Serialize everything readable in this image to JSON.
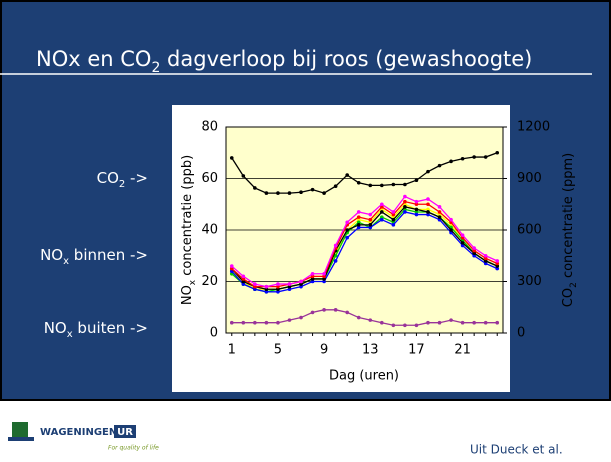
{
  "title": [
    "NOx en CO",
    "2",
    " dagverloop bij roos (gewashoogte)"
  ],
  "labels": [
    [
      "CO",
      "2",
      " ->"
    ],
    [
      "NO",
      "x",
      " binnen ->"
    ],
    [
      "NO",
      "x",
      " buiten ->"
    ]
  ],
  "footer": {
    "logo": "WAGENINGEN",
    "logo_ur": "UR",
    "tagline": "For quality of life",
    "credit": "Uit Dueck et al."
  },
  "chart_data": {
    "type": "line",
    "categories": [
      "1",
      null,
      null,
      null,
      "5",
      null,
      null,
      null,
      "9",
      null,
      null,
      null,
      "13",
      null,
      null,
      null,
      "17",
      null,
      null,
      null,
      "21",
      null,
      null,
      null
    ],
    "xlabel": "Dag (uren)",
    "ylabel": [
      "NO",
      "x",
      " concentratie (ppb)"
    ],
    "y2label": [
      "CO",
      "2",
      " concentratie (ppm)"
    ],
    "ylim": [
      0,
      80
    ],
    "yticks": [
      0,
      20,
      40,
      60,
      80
    ],
    "y2lim": [
      0,
      1200
    ],
    "y2ticks": [
      0,
      300,
      600,
      900,
      1200
    ],
    "grid": true,
    "series": [
      {
        "color": "#000000",
        "axis": "y2",
        "values": [
          1020,
          915,
          845,
          815,
          815,
          815,
          820,
          835,
          815,
          855,
          920,
          875,
          860,
          860,
          865,
          865,
          890,
          940,
          975,
          1000,
          1015,
          1025,
          1025,
          1050
        ]
      },
      {
        "color": "#ffff00",
        "values": [
          24,
          20,
          17,
          17,
          17,
          18,
          19,
          21,
          21,
          31,
          40,
          44,
          43,
          48,
          45,
          50,
          48,
          48,
          46,
          42,
          36,
          31,
          28,
          26
        ]
      },
      {
        "color": "#00cc00",
        "values": [
          23,
          19,
          17,
          16,
          17,
          18,
          19,
          21,
          21,
          30,
          39,
          43,
          41,
          45,
          43,
          48,
          47,
          47,
          45,
          41,
          36,
          31,
          28,
          26
        ]
      },
      {
        "color": "#0000ff",
        "values": [
          24,
          19,
          17,
          16,
          16,
          17,
          18,
          20,
          20,
          28,
          37,
          41,
          41,
          44,
          42,
          47,
          46,
          46,
          44,
          39,
          34,
          30,
          27,
          25
        ]
      },
      {
        "color": "#000000",
        "values": [
          25,
          20,
          18,
          17,
          17,
          18,
          19,
          21,
          21,
          32,
          40,
          42,
          42,
          47,
          44,
          49,
          48,
          47,
          45,
          40,
          35,
          31,
          28,
          26
        ]
      },
      {
        "color": "#ff0000",
        "values": [
          25,
          21,
          18,
          18,
          18,
          19,
          20,
          22,
          22,
          33,
          42,
          45,
          44,
          49,
          46,
          51,
          50,
          50,
          47,
          43,
          37,
          32,
          29,
          27
        ]
      },
      {
        "color": "#ff00ff",
        "values": [
          26,
          22,
          19,
          18,
          19,
          19,
          20,
          23,
          23,
          34,
          43,
          47,
          46,
          50,
          47,
          53,
          51,
          52,
          49,
          44,
          38,
          33,
          30,
          28
        ]
      },
      {
        "color": "#993399",
        "values": [
          4,
          4,
          4,
          4,
          4,
          5,
          6,
          8,
          9,
          9,
          8,
          6,
          5,
          4,
          3,
          3,
          3,
          4,
          4,
          5,
          4,
          4,
          4,
          4
        ]
      }
    ]
  }
}
